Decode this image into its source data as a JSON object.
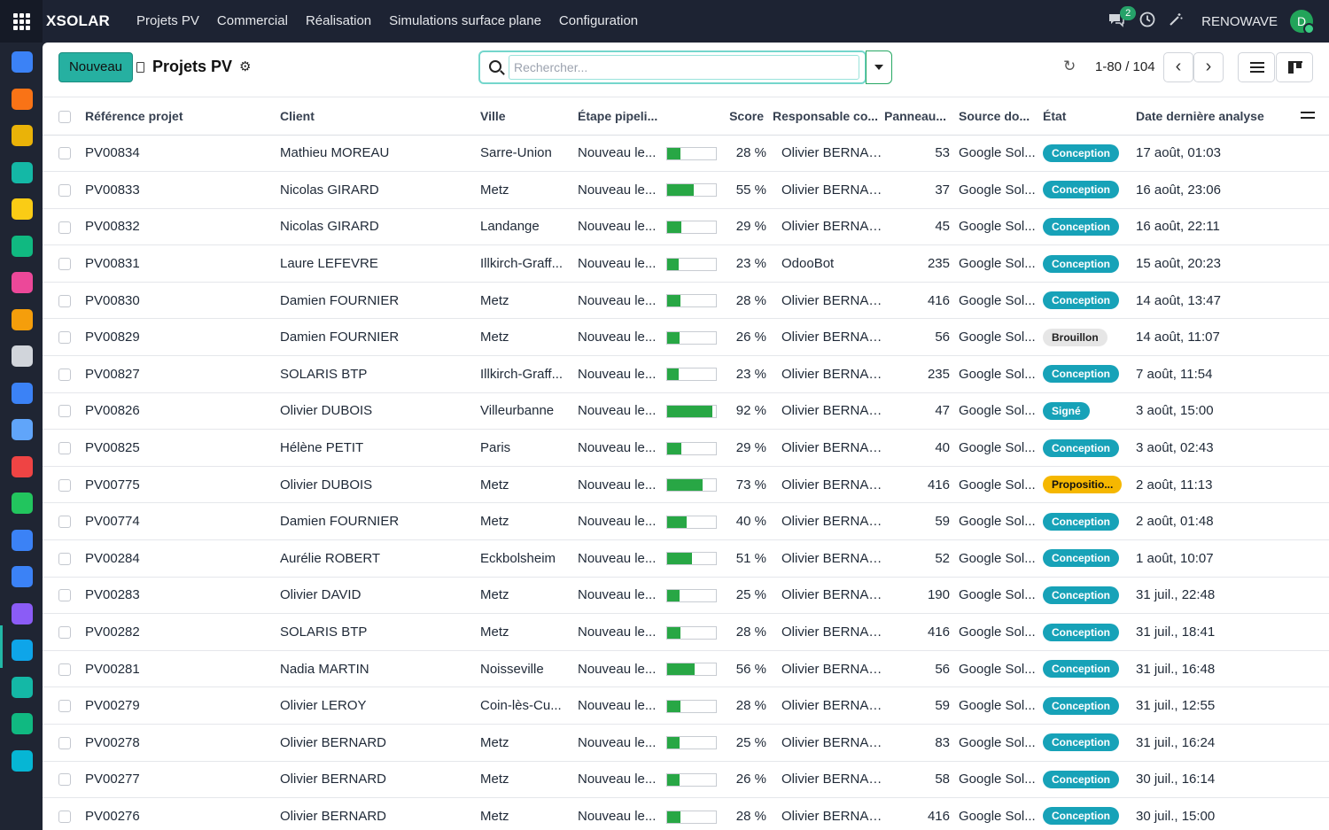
{
  "navbar": {
    "brand": "XSOLAR",
    "menu": [
      "Projets PV",
      "Commercial",
      "Réalisation",
      "Simulations surface plane",
      "Configuration"
    ],
    "messages_count": "2",
    "company": "RENOWAVE",
    "avatar_letter": "D"
  },
  "sidebar": {
    "icons": [
      {
        "name": "app-blue-icon",
        "color": "#3b82f6"
      },
      {
        "name": "app-orange-icon",
        "color": "#f97316"
      },
      {
        "name": "calendar-31-icon",
        "color": "#eab308"
      },
      {
        "name": "app-slash-icon",
        "color": "#14b8a6"
      },
      {
        "name": "app-yellow-dot-icon",
        "color": "#facc15"
      },
      {
        "name": "contact-card-icon",
        "color": "#10b981"
      },
      {
        "name": "app-diamond-icon",
        "color": "#ec4899"
      },
      {
        "name": "app-circle-icon",
        "color": "#f59e0b"
      },
      {
        "name": "bank-icon",
        "color": "#d1d5db"
      },
      {
        "name": "app-blue-square-icon",
        "color": "#3b82f6"
      },
      {
        "name": "calendar-icon",
        "color": "#60a5fa"
      },
      {
        "name": "dashboard-icon",
        "color": "#ef4444"
      },
      {
        "name": "app-green-icon",
        "color": "#22c55e"
      },
      {
        "name": "calendar-blue-icon",
        "color": "#3b82f6"
      },
      {
        "name": "projets-pv-icon",
        "color": "#3b82f6"
      },
      {
        "name": "app-purple-icon",
        "color": "#8b5cf6"
      },
      {
        "name": "app-dollar-icon",
        "color": "#0ea5e9"
      },
      {
        "name": "app-people-icon",
        "color": "#14b8a6"
      },
      {
        "name": "app-grid-icon",
        "color": "#10b981"
      },
      {
        "name": "app-check-icon",
        "color": "#06b6d4"
      }
    ]
  },
  "control_panel": {
    "new_button": "Nouveau",
    "title": "Projets PV",
    "search_placeholder": "Rechercher...",
    "pager": "1-80 / 104"
  },
  "table": {
    "headers": {
      "reference": "Référence projet",
      "client": "Client",
      "ville": "Ville",
      "etape": "Étape pipeli...",
      "score": "Score",
      "responsable": "Responsable co...",
      "panneaux": "Panneau...",
      "source": "Source do...",
      "etat": "État",
      "date": "Date dernière analyse"
    },
    "rows": [
      {
        "ref": "PV00834",
        "client": "Mathieu MOREAU",
        "ville": "Sarre-Union",
        "etape": "Nouveau le...",
        "score": 28,
        "score_label": "28 %",
        "resp": "Olivier BERNARD",
        "panneaux": "53",
        "source": "Google Sol...",
        "etat": "Conception",
        "date": "17 août, 01:03"
      },
      {
        "ref": "PV00833",
        "client": "Nicolas GIRARD",
        "ville": "Metz",
        "etape": "Nouveau le...",
        "score": 55,
        "score_label": "55 %",
        "resp": "Olivier BERNARD",
        "panneaux": "37",
        "source": "Google Sol...",
        "etat": "Conception",
        "date": "16 août, 23:06"
      },
      {
        "ref": "PV00832",
        "client": "Nicolas GIRARD",
        "ville": "Landange",
        "etape": "Nouveau le...",
        "score": 29,
        "score_label": "29 %",
        "resp": "Olivier BERNARD",
        "panneaux": "45",
        "source": "Google Sol...",
        "etat": "Conception",
        "date": "16 août, 22:11"
      },
      {
        "ref": "PV00831",
        "client": "Laure LEFEVRE",
        "ville": "Illkirch-Graff...",
        "etape": "Nouveau le...",
        "score": 23,
        "score_label": "23 %",
        "resp": "OdooBot",
        "panneaux": "235",
        "source": "Google Sol...",
        "etat": "Conception",
        "date": "15 août, 20:23"
      },
      {
        "ref": "PV00830",
        "client": "Damien FOURNIER",
        "ville": "Metz",
        "etape": "Nouveau le...",
        "score": 28,
        "score_label": "28 %",
        "resp": "Olivier BERNARD",
        "panneaux": "416",
        "source": "Google Sol...",
        "etat": "Conception",
        "date": "14 août, 13:47"
      },
      {
        "ref": "PV00829",
        "client": "Damien FOURNIER",
        "ville": "Metz",
        "etape": "Nouveau le...",
        "score": 26,
        "score_label": "26 %",
        "resp": "Olivier BERNARD",
        "panneaux": "56",
        "source": "Google Sol...",
        "etat": "Brouillon",
        "date": "14 août, 11:07"
      },
      {
        "ref": "PV00827",
        "client": "SOLARIS BTP",
        "ville": "Illkirch-Graff...",
        "etape": "Nouveau le...",
        "score": 23,
        "score_label": "23 %",
        "resp": "Olivier BERNARD",
        "panneaux": "235",
        "source": "Google Sol...",
        "etat": "Conception",
        "date": "7 août, 11:54"
      },
      {
        "ref": "PV00826",
        "client": "Olivier DUBOIS",
        "ville": "Villeurbanne",
        "etape": "Nouveau le...",
        "score": 92,
        "score_label": "92 %",
        "resp": "Olivier BERNARD",
        "panneaux": "47",
        "source": "Google Sol...",
        "etat": "Signé",
        "date": "3 août, 15:00"
      },
      {
        "ref": "PV00825",
        "client": "Hélène PETIT",
        "ville": "Paris",
        "etape": "Nouveau le...",
        "score": 29,
        "score_label": "29 %",
        "resp": "Olivier BERNARD",
        "panneaux": "40",
        "source": "Google Sol...",
        "etat": "Conception",
        "date": "3 août, 02:43"
      },
      {
        "ref": "PV00775",
        "client": "Olivier DUBOIS",
        "ville": "Metz",
        "etape": "Nouveau le...",
        "score": 73,
        "score_label": "73 %",
        "resp": "Olivier BERNARD",
        "panneaux": "416",
        "source": "Google Sol...",
        "etat": "Propositio...",
        "date": "2 août, 11:13"
      },
      {
        "ref": "PV00774",
        "client": "Damien FOURNIER",
        "ville": "Metz",
        "etape": "Nouveau le...",
        "score": 40,
        "score_label": "40 %",
        "resp": "Olivier BERNARD",
        "panneaux": "59",
        "source": "Google Sol...",
        "etat": "Conception",
        "date": "2 août, 01:48"
      },
      {
        "ref": "PV00284",
        "client": "Aurélie ROBERT",
        "ville": "Eckbolsheim",
        "etape": "Nouveau le...",
        "score": 51,
        "score_label": "51 %",
        "resp": "Olivier BERNARD",
        "panneaux": "52",
        "source": "Google Sol...",
        "etat": "Conception",
        "date": "1 août, 10:07"
      },
      {
        "ref": "PV00283",
        "client": "Olivier DAVID",
        "ville": "Metz",
        "etape": "Nouveau le...",
        "score": 25,
        "score_label": "25 %",
        "resp": "Olivier BERNARD",
        "panneaux": "190",
        "source": "Google Sol...",
        "etat": "Conception",
        "date": "31 juil., 22:48"
      },
      {
        "ref": "PV00282",
        "client": "SOLARIS BTP",
        "ville": "Metz",
        "etape": "Nouveau le...",
        "score": 28,
        "score_label": "28 %",
        "resp": "Olivier BERNARD",
        "panneaux": "416",
        "source": "Google Sol...",
        "etat": "Conception",
        "date": "31 juil., 18:41"
      },
      {
        "ref": "PV00281",
        "client": "Nadia MARTIN",
        "ville": "Noisseville",
        "etape": "Nouveau le...",
        "score": 56,
        "score_label": "56 %",
        "resp": "Olivier BERNARD",
        "panneaux": "56",
        "source": "Google Sol...",
        "etat": "Conception",
        "date": "31 juil., 16:48"
      },
      {
        "ref": "PV00279",
        "client": "Olivier LEROY",
        "ville": "Coin-lès-Cu...",
        "etape": "Nouveau le...",
        "score": 28,
        "score_label": "28 %",
        "resp": "Olivier BERNARD",
        "panneaux": "59",
        "source": "Google Sol...",
        "etat": "Conception",
        "date": "31 juil., 12:55"
      },
      {
        "ref": "PV00278",
        "client": "Olivier BERNARD",
        "ville": "Metz",
        "etape": "Nouveau le...",
        "score": 25,
        "score_label": "25 %",
        "resp": "Olivier BERNARD",
        "panneaux": "83",
        "source": "Google Sol...",
        "etat": "Conception",
        "date": "31 juil., 16:24"
      },
      {
        "ref": "PV00277",
        "client": "Olivier BERNARD",
        "ville": "Metz",
        "etape": "Nouveau le...",
        "score": 26,
        "score_label": "26 %",
        "resp": "Olivier BERNARD",
        "panneaux": "58",
        "source": "Google Sol...",
        "etat": "Conception",
        "date": "30 juil., 16:14"
      },
      {
        "ref": "PV00276",
        "client": "Olivier BERNARD",
        "ville": "Metz",
        "etape": "Nouveau le...",
        "score": 28,
        "score_label": "28 %",
        "resp": "Olivier BERNARD",
        "panneaux": "416",
        "source": "Google Sol...",
        "etat": "Conception",
        "date": "30 juil., 15:00"
      }
    ]
  }
}
